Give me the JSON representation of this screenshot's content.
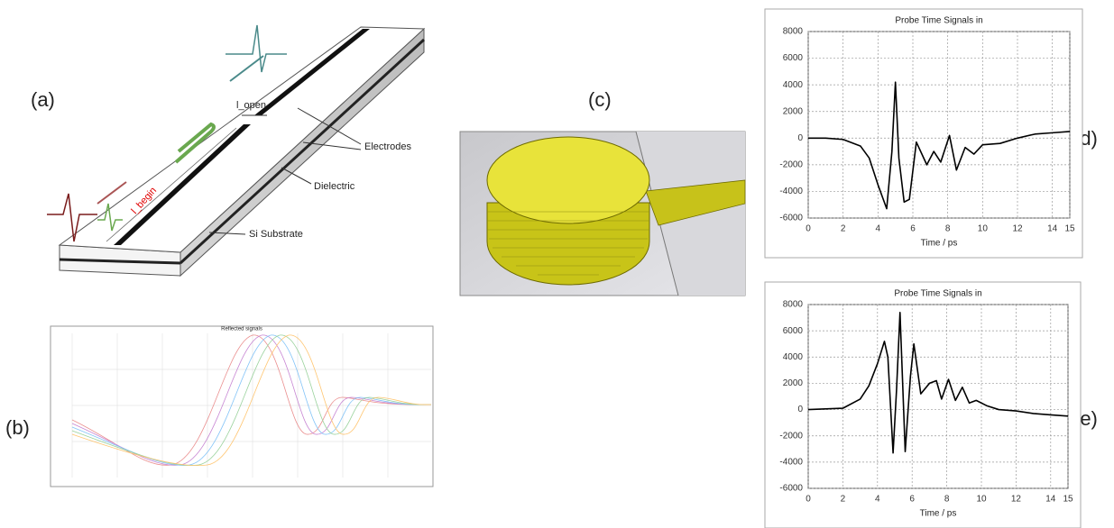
{
  "labels": {
    "a": "(a)",
    "b": "(b)",
    "c": "(c)",
    "d": "(d)",
    "e": "(e)"
  },
  "panel_a": {
    "gap": "l_open",
    "electrodes": "Electrodes",
    "dielectric": "Dielectric",
    "substrate": "Si Substrate",
    "begin": "l_begin"
  },
  "panel_b": {
    "title": "Reflected signals"
  },
  "chart_data": [
    {
      "type": "line",
      "title": "Probe Time Signals in",
      "x_label": "Time / ps",
      "x": [
        0,
        1,
        2,
        3,
        3.5,
        4,
        4.5,
        4.8,
        5.0,
        5.2,
        5.5,
        5.8,
        6.2,
        6.8,
        7.2,
        7.6,
        8.1,
        8.5,
        9,
        9.5,
        10,
        11,
        12,
        13,
        14,
        15
      ],
      "values": [
        0,
        0,
        -100,
        -600,
        -1500,
        -3500,
        -5300,
        -1000,
        4200,
        -1500,
        -4800,
        -4600,
        -300,
        -2000,
        -1000,
        -1800,
        200,
        -2400,
        -700,
        -1200,
        -500,
        -400,
        0,
        300,
        400,
        500
      ],
      "color": "#000000",
      "xlim": [
        0,
        15
      ],
      "xticks": [
        0,
        2,
        4,
        6,
        8,
        10,
        12,
        14,
        15
      ],
      "ylim": [
        -6000,
        8000
      ],
      "yticks": [
        -6000,
        -4000,
        -2000,
        0,
        2000,
        4000,
        6000,
        8000
      ],
      "grid": true
    },
    {
      "type": "line",
      "title": "Probe Time Signals in",
      "x_label": "Time / ps",
      "x": [
        0,
        2,
        3,
        3.5,
        4,
        4.4,
        4.6,
        4.9,
        5.1,
        5.3,
        5.6,
        5.9,
        6.1,
        6.5,
        7,
        7.4,
        7.7,
        8.1,
        8.5,
        8.9,
        9.3,
        9.7,
        10.3,
        11,
        12,
        13,
        14,
        15
      ],
      "values": [
        0,
        100,
        800,
        1800,
        3500,
        5200,
        4000,
        -3300,
        1500,
        7400,
        -3200,
        2500,
        5000,
        1200,
        2000,
        2200,
        800,
        2300,
        700,
        1700,
        500,
        700,
        300,
        0,
        -100,
        -300,
        -400,
        -500
      ],
      "color": "#000000",
      "xlim": [
        0,
        15
      ],
      "xticks": [
        0,
        2,
        4,
        6,
        8,
        10,
        12,
        14,
        15
      ],
      "ylim": [
        -6000,
        8000
      ],
      "yticks": [
        -6000,
        -4000,
        -2000,
        0,
        2000,
        4000,
        6000,
        8000
      ],
      "grid": true
    }
  ]
}
